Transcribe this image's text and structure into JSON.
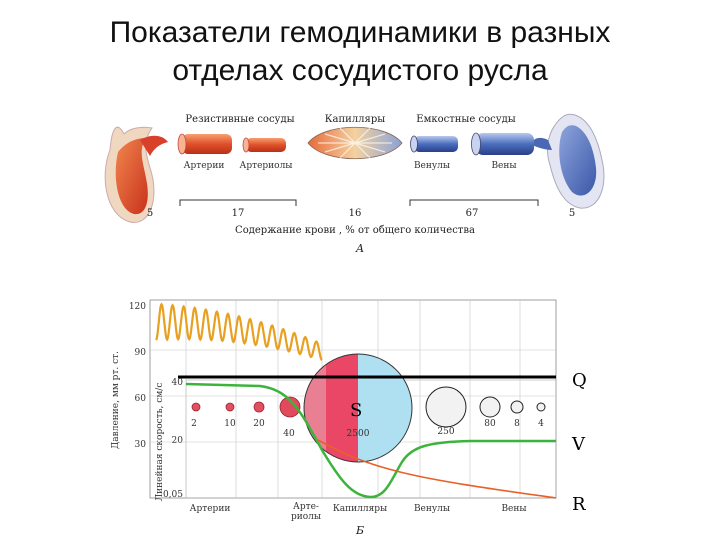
{
  "slide": {
    "title_line1": "Показатели гемодинамики в разных",
    "title_line2": "отделах сосудистого русла"
  },
  "panel_a": {
    "letter": "А",
    "groups": {
      "resistive": "Резистивные сосуды",
      "capillaries": "Капилляры",
      "capacitive": "Емкостные сосуды"
    },
    "vessels": [
      "Артерии",
      "Артериолы",
      "Венулы",
      "Вены"
    ],
    "blood_content": [
      "5",
      "17",
      "16",
      "67",
      "5"
    ],
    "caption": "Содержание крови , % от общего количества"
  },
  "panel_b": {
    "letter": "Б",
    "y_axis_pressure": {
      "label": "Давление, мм рт. ст.",
      "ticks": [
        "120",
        "90",
        "60",
        "30"
      ]
    },
    "y_axis_velocity": {
      "label": "Линейная скорость, см/с",
      "ticks": [
        "40",
        "20",
        "0,05"
      ]
    },
    "x_labels": [
      "Артерии",
      "Арте- риолы",
      "Капилляры",
      "Венулы",
      "Вены"
    ],
    "x_label_arterioles_l1": "Арте-",
    "x_label_arterioles_l2": "риолы",
    "area_values": [
      "2",
      "10",
      "20",
      "40",
      "2500",
      "250",
      "80",
      "8",
      "4"
    ],
    "markers": {
      "Q": "Q",
      "S": "S",
      "V": "V",
      "R": "R"
    }
  },
  "colors": {
    "arterial": "#e0502a",
    "venous": "#3a5fae",
    "velocity_curve": "#3cb43c",
    "resistance_curve": "#e8602a",
    "circle_red": "#e83a5a",
    "circle_blue": "#a8ddf0"
  }
}
